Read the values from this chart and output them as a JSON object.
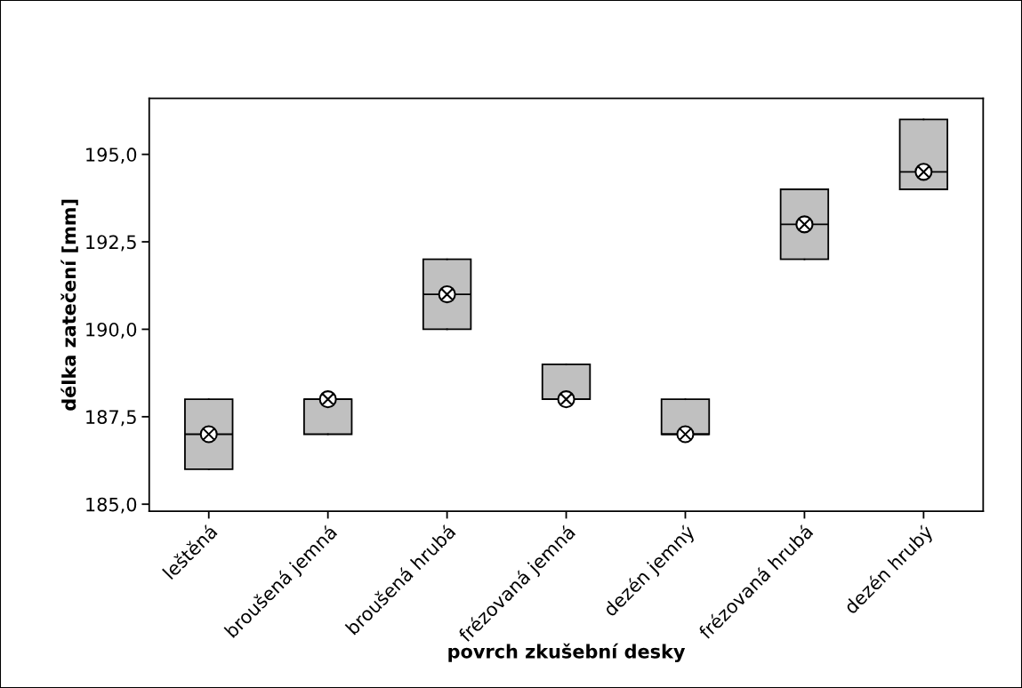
{
  "chart_data": {
    "type": "box",
    "xlabel": "povrch zkušební desky",
    "ylabel": "délka zatečení [mm]",
    "categories": [
      "leštěná",
      "broušená jemná",
      "broušená hrubá",
      "frézovaná jemná",
      "dezén jemný",
      "frézovaná hrubá",
      "dezén hrubý"
    ],
    "boxes": [
      {
        "low": 186,
        "q1": 186,
        "median": 187,
        "q3": 188,
        "high": 188,
        "mean": 187
      },
      {
        "low": 187,
        "q1": 187,
        "median": 188,
        "q3": 188,
        "high": 188,
        "mean": 188
      },
      {
        "low": 190,
        "q1": 190,
        "median": 191,
        "q3": 192,
        "high": 192,
        "mean": 191
      },
      {
        "low": 188,
        "q1": 188,
        "median": 188,
        "q3": 189,
        "high": 189,
        "mean": 188
      },
      {
        "low": 187,
        "q1": 187,
        "median": 187,
        "q3": 188,
        "high": 188,
        "mean": 187
      },
      {
        "low": 192,
        "q1": 192,
        "median": 193,
        "q3": 194,
        "high": 194,
        "mean": 193
      },
      {
        "low": 194,
        "q1": 194,
        "median": 194.5,
        "q3": 196,
        "high": 196,
        "mean": 194.5
      }
    ],
    "color": "#c0c0c0",
    "ylim": [
      184.8,
      196.6
    ],
    "yticks": [
      {
        "value": 185,
        "label": "185,0"
      },
      {
        "value": 187.5,
        "label": "187,5"
      },
      {
        "value": 190,
        "label": "190,0"
      },
      {
        "value": 192.5,
        "label": "192,5"
      },
      {
        "value": 195,
        "label": "195,0"
      }
    ],
    "grid": false
  }
}
